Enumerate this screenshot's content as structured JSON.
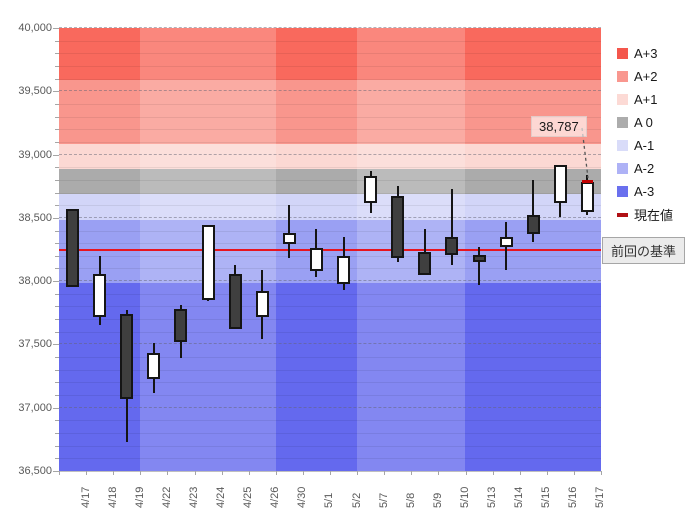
{
  "chart_data": {
    "type": "candlestick",
    "title": "",
    "y_axis": {
      "min": 36500,
      "max": 40000,
      "tick_interval": 500,
      "minor_tick_interval": 100,
      "tick_labels": [
        "36,500",
        "37,000",
        "37,500",
        "38,000",
        "38,500",
        "39,000",
        "39,500",
        "40,000"
      ]
    },
    "x_axis": {
      "labels": [
        "4/17",
        "4/18",
        "4/19",
        "4/22",
        "4/23",
        "4/24",
        "4/25",
        "4/26",
        "4/30",
        "5/1",
        "5/2",
        "5/7",
        "5/8",
        "5/9",
        "5/10",
        "5/13",
        "5/14",
        "5/15",
        "5/16",
        "5/17"
      ]
    },
    "bands": [
      {
        "label": "A+3",
        "from": 39587,
        "to": 40000,
        "color": "#F9695D"
      },
      {
        "label": "A+2",
        "from": 39087,
        "to": 39587,
        "color": "#F9968D"
      },
      {
        "label": "A+1",
        "from": 38887,
        "to": 39087,
        "color": "#FCD8D3"
      },
      {
        "label": "A 0",
        "from": 38687,
        "to": 38887,
        "color": "#ABABAB"
      },
      {
        "label": "A-1",
        "from": 38487,
        "to": 38687,
        "color": "#D2D5F8"
      },
      {
        "label": "A-2",
        "from": 37987,
        "to": 38487,
        "color": "#9AA0F3"
      },
      {
        "label": "A-3",
        "from": 36500,
        "to": 37987,
        "color": "#6469EE"
      }
    ],
    "week_shading": [
      {
        "dates": "4/17-4/19",
        "start": 0,
        "end": 3,
        "light": false
      },
      {
        "dates": "4/22-4/26",
        "start": 3,
        "end": 8,
        "light": true
      },
      {
        "dates": "4/30-5/2",
        "start": 8,
        "end": 11,
        "light": false
      },
      {
        "dates": "5/7-5/10",
        "start": 11,
        "end": 15,
        "light": true
      },
      {
        "dates": "5/13-5/17",
        "start": 15,
        "end": 20,
        "light": false
      }
    ],
    "candles": [
      {
        "date": "4/17",
        "open": 38570,
        "high": 38570,
        "low": 37950,
        "close": 37950
      },
      {
        "date": "4/18",
        "open": 37720,
        "high": 38200,
        "low": 37650,
        "close": 38060
      },
      {
        "date": "4/19",
        "open": 37740,
        "high": 37770,
        "low": 36730,
        "close": 37070
      },
      {
        "date": "4/22",
        "open": 37230,
        "high": 37510,
        "low": 37120,
        "close": 37430
      },
      {
        "date": "4/23",
        "open": 37780,
        "high": 37810,
        "low": 37390,
        "close": 37520
      },
      {
        "date": "4/24",
        "open": 37850,
        "high": 38440,
        "low": 37840,
        "close": 38440
      },
      {
        "date": "4/25",
        "open": 38060,
        "high": 38130,
        "low": 37620,
        "close": 37620
      },
      {
        "date": "4/26",
        "open": 37720,
        "high": 38090,
        "low": 37540,
        "close": 37920
      },
      {
        "date": "4/30",
        "open": 38290,
        "high": 38600,
        "low": 38180,
        "close": 38380
      },
      {
        "date": "5/1",
        "open": 38080,
        "high": 38410,
        "low": 38030,
        "close": 38260
      },
      {
        "date": "5/2",
        "open": 37980,
        "high": 38350,
        "low": 37930,
        "close": 38200
      },
      {
        "date": "5/7",
        "open": 38620,
        "high": 38870,
        "low": 38540,
        "close": 38830
      },
      {
        "date": "5/8",
        "open": 38670,
        "high": 38750,
        "low": 38150,
        "close": 38180
      },
      {
        "date": "5/9",
        "open": 38230,
        "high": 38410,
        "low": 38050,
        "close": 38050
      },
      {
        "date": "5/10",
        "open": 38350,
        "high": 38730,
        "low": 38130,
        "close": 38210
      },
      {
        "date": "5/13",
        "open": 38210,
        "high": 38270,
        "low": 37970,
        "close": 38150
      },
      {
        "date": "5/14",
        "open": 38270,
        "high": 38470,
        "low": 38090,
        "close": 38350
      },
      {
        "date": "5/15",
        "open": 38520,
        "high": 38800,
        "low": 38310,
        "close": 38370
      },
      {
        "date": "5/16",
        "open": 38620,
        "high": 38920,
        "low": 38510,
        "close": 38920
      },
      {
        "date": "5/17",
        "open": 38550,
        "high": 38840,
        "low": 38520,
        "close": 38787
      }
    ],
    "candle_colors": {
      "up_fill": "#FFFFFF",
      "down_fill": "#3F3F3F",
      "outline": "#151515"
    },
    "baseline": {
      "label": "前回の基準",
      "value": 38250,
      "color": "#E8141E"
    },
    "current_value": {
      "label": "現在値",
      "value": 38787,
      "annotation": "38,787",
      "date": "5/17",
      "color": "#C00000"
    },
    "legend": [
      {
        "label": "A+3",
        "color": "#F4564C",
        "type": "box"
      },
      {
        "label": "A+2",
        "color": "#F9978F",
        "type": "box"
      },
      {
        "label": "A+1",
        "color": "#FCDAD5",
        "type": "box"
      },
      {
        "label": "A 0",
        "color": "#ACACAC",
        "type": "box"
      },
      {
        "label": "A-1",
        "color": "#D9DCF9",
        "type": "box"
      },
      {
        "label": "A-2",
        "color": "#AEB2F6",
        "type": "box"
      },
      {
        "label": "A-3",
        "color": "#6A70EE",
        "type": "box"
      },
      {
        "label": "現在値",
        "color": "#B01015",
        "type": "line"
      }
    ],
    "grid": {
      "major_dashed": true,
      "minor_solid": true
    },
    "legend_position": "right"
  }
}
